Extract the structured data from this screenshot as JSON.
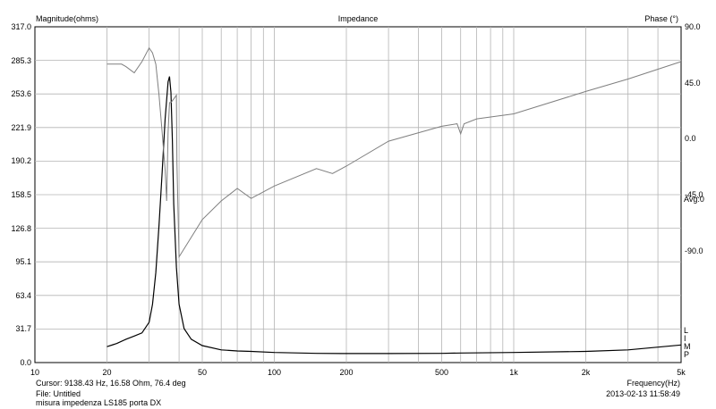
{
  "header": {
    "left_title": "Magnitude(ohms)",
    "center_title": "Impedance",
    "right_title": "Phase (°)"
  },
  "footer": {
    "cursor": "Cursor: 9138.43 Hz, 16.58 Ohm, 76.4 deg",
    "file": "File: Untitled",
    "description": "misura impedenza LS185 porta DX",
    "xaxis_title": "Frequency(Hz)",
    "timestamp": "2013-02-13 11:58:49"
  },
  "side_labels": {
    "avg": "Avg:0",
    "l": "L",
    "i": "I",
    "m": "M",
    "p": "P"
  },
  "chart_data": {
    "type": "line",
    "title": "Impedance",
    "xlabel": "Frequency(Hz)",
    "ylabel": "Magnitude(ohms)",
    "y2label": "Phase (°)",
    "xscale": "log",
    "xlim": [
      10,
      5000
    ],
    "ylim": [
      0,
      317
    ],
    "y2lim": [
      -180,
      90
    ],
    "grid": true,
    "x_ticks": [
      {
        "v": 10,
        "label": "10"
      },
      {
        "v": 20,
        "label": "20"
      },
      {
        "v": 50,
        "label": "50"
      },
      {
        "v": 100,
        "label": "100"
      },
      {
        "v": 200,
        "label": "200"
      },
      {
        "v": 500,
        "label": "500"
      },
      {
        "v": 1000,
        "label": "1k"
      },
      {
        "v": 2000,
        "label": "2k"
      },
      {
        "v": 5000,
        "label": "5k"
      }
    ],
    "y_ticks": [
      "317.0",
      "285.3",
      "253.6",
      "221.9",
      "190.2",
      "158.5",
      "126.8",
      "95.1",
      "63.4",
      "31.7",
      "0.0"
    ],
    "y2_ticks": [
      "90.0",
      "45.0",
      "0.0",
      "-45.0",
      "-90.0"
    ],
    "series": [
      {
        "key": "magnitude",
        "color": "#000000",
        "x": [
          20,
          22,
          24,
          26,
          28,
          30,
          31,
          32,
          33,
          34,
          35,
          36,
          36.5,
          37,
          37.5,
          38,
          39,
          40,
          42,
          45,
          50,
          60,
          70,
          80,
          100,
          150,
          200,
          300,
          500,
          600,
          1000,
          2000,
          3000,
          5000
        ],
        "y": [
          15,
          18,
          22,
          25,
          28,
          38,
          55,
          85,
          130,
          180,
          230,
          265,
          270,
          255,
          210,
          150,
          90,
          55,
          32,
          22,
          16,
          12,
          11,
          10.5,
          9.5,
          8.7,
          8.5,
          8.5,
          8.7,
          9,
          9.5,
          10.5,
          12,
          16.6
        ]
      },
      {
        "key": "phase",
        "color": "#7f7f7f",
        "x": [
          20,
          23,
          24,
          26,
          28,
          30,
          31,
          32,
          33,
          34,
          35,
          35.5,
          36,
          36.5,
          37,
          38,
          39,
          39.2,
          40,
          50,
          60,
          70,
          80,
          100,
          150,
          175,
          200,
          300,
          500,
          580,
          600,
          620,
          700,
          1000,
          2000,
          3000,
          5000
        ],
        "y": [
          60,
          60,
          58,
          53,
          62,
          73,
          69,
          60,
          35,
          5,
          -25,
          -50,
          5,
          29,
          29,
          32,
          35,
          -20,
          -95,
          -65,
          -50,
          -40,
          -48,
          -38,
          -24,
          -28,
          -22,
          -2,
          10,
          12,
          4,
          12,
          16,
          20,
          38,
          48,
          62
        ]
      }
    ]
  }
}
